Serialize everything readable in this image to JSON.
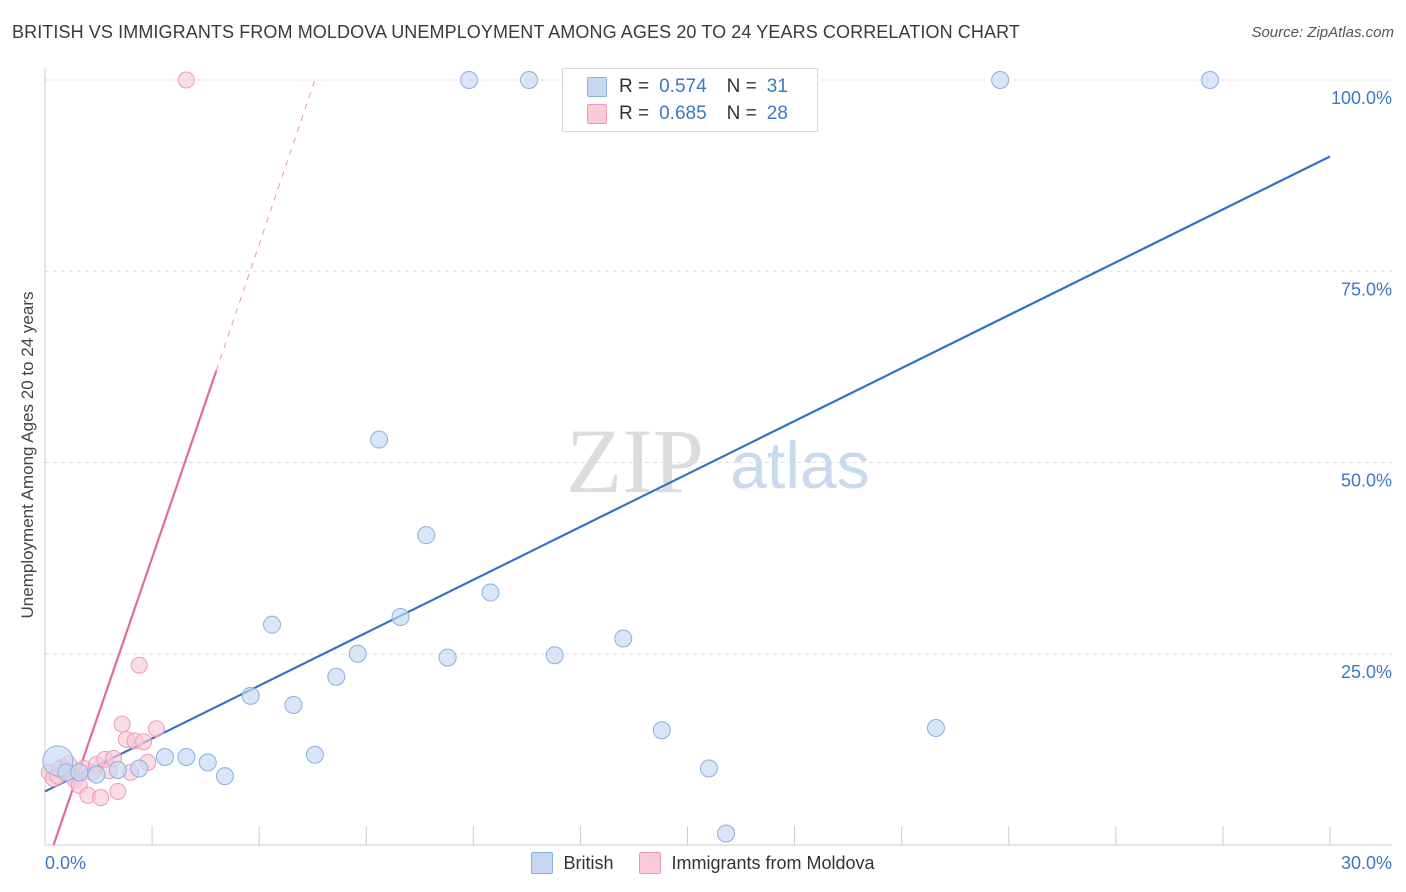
{
  "header": {
    "title": "BRITISH VS IMMIGRANTS FROM MOLDOVA UNEMPLOYMENT AMONG AGES 20 TO 24 YEARS CORRELATION CHART",
    "source": "Source: ZipAtlas.com"
  },
  "watermark": {
    "zip": "ZIP",
    "atlas": "atlas"
  },
  "legend": {
    "british": {
      "r_label": "R =",
      "r_value": "0.574",
      "n_label": "N =",
      "n_value": "31"
    },
    "moldova": {
      "r_label": "R =",
      "r_value": "0.685",
      "n_label": "N =",
      "n_value": "28"
    }
  },
  "bottom_legend": {
    "british": "British",
    "moldova": "Immigrants from Moldova"
  },
  "colors": {
    "british_fill": "#c5d8f3",
    "british_stroke": "#8ab0e0",
    "british_line": "#2f72c8",
    "moldova_fill": "#f8c9d7",
    "moldova_stroke": "#ee9ab5",
    "moldova_line": "#e46a98",
    "axis_label": "#3a78c9",
    "grid": "#dddddd"
  },
  "chart_data": {
    "type": "scatter",
    "title": "BRITISH VS IMMIGRANTS FROM MOLDOVA UNEMPLOYMENT AMONG AGES 20 TO 24 YEARS CORRELATION CHART",
    "xlabel": "",
    "ylabel": "Unemployment Among Ages 20 to 24 years",
    "xlim": [
      0,
      30
    ],
    "ylim": [
      0,
      100
    ],
    "x_tick_labels": [
      {
        "value": 0,
        "label": "0.0%"
      },
      {
        "value": 30,
        "label": "30.0%"
      }
    ],
    "y_tick_labels": [
      {
        "value": 25,
        "label": "25.0%"
      },
      {
        "value": 50,
        "label": "50.0%"
      },
      {
        "value": 75,
        "label": "75.0%"
      },
      {
        "value": 100,
        "label": "100.0%"
      }
    ],
    "grid": true,
    "series": [
      {
        "name": "British",
        "r": 0.574,
        "n": 31,
        "points": [
          {
            "x": 0.3,
            "y": 11.0,
            "big": true
          },
          {
            "x": 0.5,
            "y": 9.5
          },
          {
            "x": 0.8,
            "y": 9.5
          },
          {
            "x": 1.2,
            "y": 9.2
          },
          {
            "x": 1.7,
            "y": 9.8
          },
          {
            "x": 2.2,
            "y": 10.0
          },
          {
            "x": 2.8,
            "y": 11.5
          },
          {
            "x": 3.3,
            "y": 11.5
          },
          {
            "x": 3.8,
            "y": 10.8
          },
          {
            "x": 4.2,
            "y": 9.0
          },
          {
            "x": 4.8,
            "y": 19.5
          },
          {
            "x": 5.3,
            "y": 28.8
          },
          {
            "x": 5.8,
            "y": 18.3
          },
          {
            "x": 6.3,
            "y": 11.8
          },
          {
            "x": 6.8,
            "y": 22.0
          },
          {
            "x": 7.3,
            "y": 25.0
          },
          {
            "x": 7.8,
            "y": 53.0
          },
          {
            "x": 8.3,
            "y": 29.8
          },
          {
            "x": 8.9,
            "y": 40.5
          },
          {
            "x": 9.4,
            "y": 24.5
          },
          {
            "x": 10.4,
            "y": 33.0
          },
          {
            "x": 11.9,
            "y": 24.8
          },
          {
            "x": 13.5,
            "y": 27.0
          },
          {
            "x": 14.4,
            "y": 15.0
          },
          {
            "x": 15.5,
            "y": 10.0
          },
          {
            "x": 15.9,
            "y": 1.5
          },
          {
            "x": 20.8,
            "y": 15.3
          },
          {
            "x": 9.9,
            "y": 100
          },
          {
            "x": 11.3,
            "y": 100
          },
          {
            "x": 22.3,
            "y": 100
          },
          {
            "x": 27.2,
            "y": 100
          }
        ],
        "trend": {
          "x0": 0,
          "y0": 7.0,
          "x1": 30,
          "y1": 90.0
        }
      },
      {
        "name": "Immigrants from Moldova",
        "r": 0.685,
        "n": 28,
        "points": [
          {
            "x": 0.1,
            "y": 9.5
          },
          {
            "x": 0.2,
            "y": 8.7
          },
          {
            "x": 0.3,
            "y": 9.0
          },
          {
            "x": 0.4,
            "y": 10.2
          },
          {
            "x": 0.5,
            "y": 9.8
          },
          {
            "x": 0.6,
            "y": 9.2
          },
          {
            "x": 0.7,
            "y": 8.5
          },
          {
            "x": 0.8,
            "y": 7.8
          },
          {
            "x": 0.9,
            "y": 10.0
          },
          {
            "x": 1.0,
            "y": 6.5
          },
          {
            "x": 1.1,
            "y": 9.5
          },
          {
            "x": 1.2,
            "y": 10.5
          },
          {
            "x": 1.3,
            "y": 6.2
          },
          {
            "x": 1.4,
            "y": 11.2
          },
          {
            "x": 1.5,
            "y": 9.7
          },
          {
            "x": 1.6,
            "y": 11.3
          },
          {
            "x": 1.7,
            "y": 7.0
          },
          {
            "x": 1.8,
            "y": 15.8
          },
          {
            "x": 1.9,
            "y": 13.8
          },
          {
            "x": 2.0,
            "y": 9.5
          },
          {
            "x": 2.1,
            "y": 13.6
          },
          {
            "x": 2.2,
            "y": 23.5
          },
          {
            "x": 2.3,
            "y": 13.5
          },
          {
            "x": 2.4,
            "y": 10.8
          },
          {
            "x": 2.6,
            "y": 15.2
          },
          {
            "x": 0.35,
            "y": 9.9
          },
          {
            "x": 0.55,
            "y": 10.6
          },
          {
            "x": 3.3,
            "y": 100
          }
        ],
        "trend": {
          "x0": 0.2,
          "y0": 0.0,
          "x1": 4.0,
          "y1": 62.0
        },
        "trend_dashed": {
          "x0": 4.0,
          "y0": 62.0,
          "x1": 6.3,
          "y1": 100.0
        }
      }
    ]
  }
}
